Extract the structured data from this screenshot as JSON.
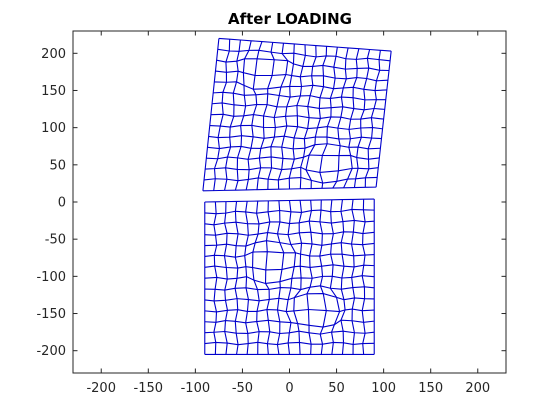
{
  "chart_data": {
    "type": "line",
    "title": "After LOADING",
    "xlabel": "",
    "ylabel": "",
    "xlim": [
      -230,
      230
    ],
    "ylim": [
      -230,
      230
    ],
    "xticks": [
      -200,
      -150,
      -100,
      -50,
      0,
      50,
      100,
      150,
      200
    ],
    "yticks": [
      -200,
      -150,
      -100,
      -50,
      0,
      50,
      100,
      150,
      200
    ],
    "xtick_labels": [
      "-200",
      "-150",
      "-100",
      "-50",
      "0",
      "50",
      "100",
      "150",
      "200"
    ],
    "ytick_labels": [
      "-200",
      "-150",
      "-100",
      "-50",
      "0",
      "50",
      "100",
      "150",
      "200"
    ],
    "grid": false,
    "series": [
      {
        "color": "#0000cc",
        "style": "mesh",
        "corners": [
          [
            -75,
            220
          ],
          [
            108,
            203
          ],
          [
            92,
            20
          ],
          [
            -92,
            15
          ]
        ],
        "rows": 14,
        "cols": 16,
        "perturbations": [
          {
            "x": -25,
            "y": 175,
            "r": 30,
            "a": 7
          },
          {
            "x": 42,
            "y": 52,
            "r": 30,
            "a": 7
          }
        ]
      },
      {
        "color": "#0000cc",
        "style": "mesh",
        "corners": [
          [
            -90,
            0
          ],
          [
            90,
            4
          ],
          [
            90,
            -205
          ],
          [
            -90,
            -205
          ]
        ],
        "rows": 14,
        "cols": 16,
        "perturbations": [
          {
            "x": -18,
            "y": -82,
            "r": 32,
            "a": 7
          },
          {
            "x": 28,
            "y": -145,
            "r": 32,
            "a": 7
          }
        ]
      }
    ]
  }
}
